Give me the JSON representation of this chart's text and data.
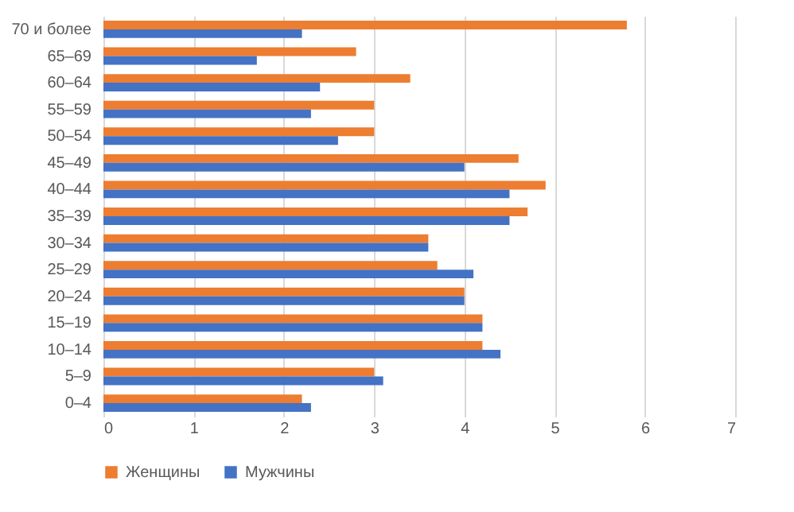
{
  "chart_data": {
    "type": "bar",
    "orientation": "horizontal",
    "categories": [
      "70 и более",
      "65–69",
      "60–64",
      "55–59",
      "50–54",
      "45–49",
      "40–44",
      "35–39",
      "30–34",
      "25–29",
      "20–24",
      "15–19",
      "10–14",
      "5–9",
      "0–4"
    ],
    "series": [
      {
        "name": "Женщины",
        "color": "#ed7d31",
        "values": [
          5.8,
          2.8,
          3.4,
          3.0,
          3.0,
          4.6,
          4.9,
          4.7,
          3.6,
          3.7,
          4.0,
          4.2,
          4.2,
          3.0,
          2.2
        ]
      },
      {
        "name": "Мужчины",
        "color": "#4472c4",
        "values": [
          2.2,
          1.7,
          2.4,
          2.3,
          2.6,
          4.0,
          4.5,
          4.5,
          3.6,
          4.1,
          4.0,
          4.2,
          4.4,
          3.1,
          2.3
        ]
      }
    ],
    "xlim": [
      0,
      7
    ],
    "xticks": [
      0,
      1,
      2,
      3,
      4,
      5,
      6,
      7
    ],
    "grid": "x",
    "legend": "bottom"
  }
}
